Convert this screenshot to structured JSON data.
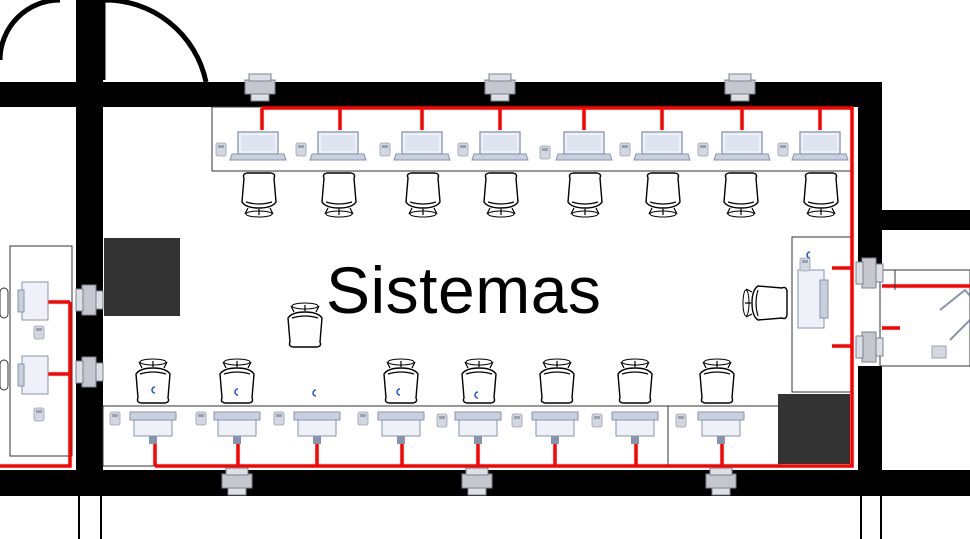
{
  "room": {
    "label": "Sistemas"
  },
  "colors": {
    "wall": "#000000",
    "cable": "#ff0000",
    "furniture_dark": "#333333",
    "device": "#bcc4d4",
    "mark": "#1f4fe0"
  },
  "icons": {
    "workstation": "laptop-icon",
    "monitor": "monitor-icon",
    "phone": "desk-phone-icon",
    "chair": "office-chair-icon",
    "network_port": "network-jack-icon",
    "cabinet": "server-rack-icon"
  },
  "counts": {
    "top_row_workstations": 8,
    "bottom_row_workstations": 8,
    "wall_jacks": 11
  }
}
